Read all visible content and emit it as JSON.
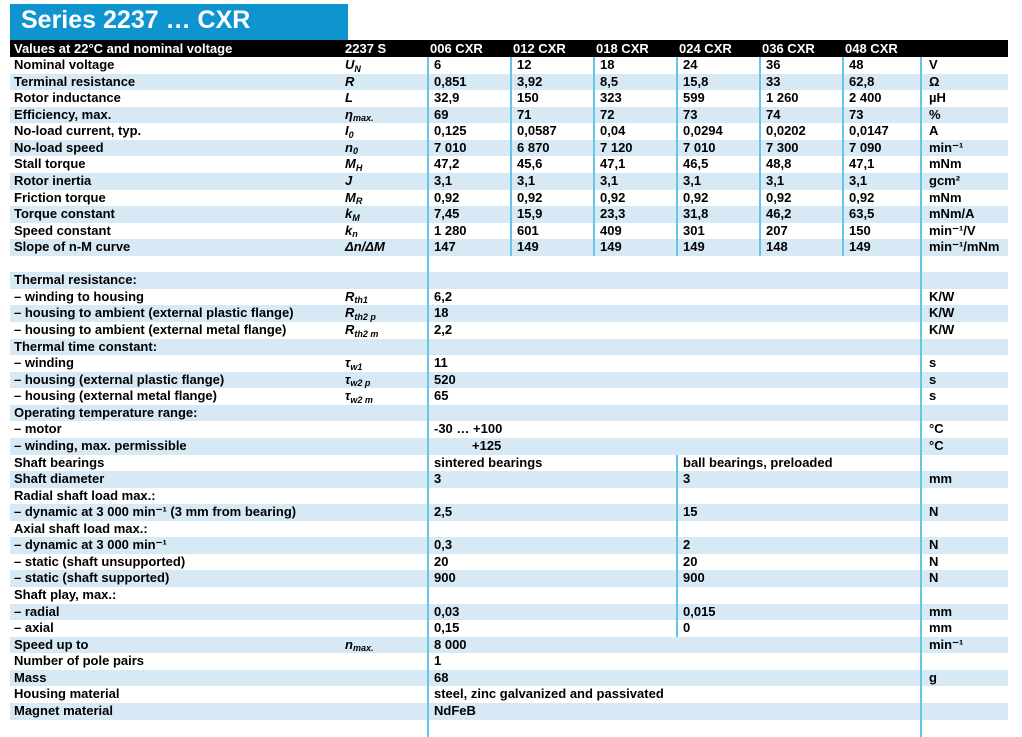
{
  "page": {
    "title": "Series 2237 … CXR",
    "header": {
      "caption": "Values at 22°C and nominal voltage",
      "series_col": "2237 S",
      "columns": [
        "006 CXR",
        "012 CXR",
        "018 CXR",
        "024 CXR",
        "036 CXR",
        "048 CXR"
      ]
    },
    "colors": {
      "title_bar": "#0e95d0",
      "header_bar": "#000000",
      "header_text": "#ffffff",
      "row_shade": "#d6e9f5",
      "divider": "#66c6e8",
      "text": "#000000"
    },
    "rows": [
      {
        "label": "Nominal voltage",
        "sym": "U",
        "sub": "N",
        "type": "six",
        "values": [
          "6",
          "12",
          "18",
          "24",
          "36",
          "48"
        ],
        "unit": "V",
        "shade": false
      },
      {
        "label": "Terminal resistance",
        "sym": "R",
        "sub": "",
        "type": "six",
        "values": [
          "0,851",
          "3,92",
          "8,5",
          "15,8",
          "33",
          "62,8"
        ],
        "unit": "Ω",
        "shade": true
      },
      {
        "label": "Rotor inductance",
        "sym": "L",
        "sub": "",
        "type": "six",
        "values": [
          "32,9",
          "150",
          "323",
          "599",
          "1 260",
          "2 400"
        ],
        "unit": "µH",
        "shade": false
      },
      {
        "label": "Efficiency, max.",
        "sym": "η",
        "sub": "max.",
        "type": "six",
        "values": [
          "69",
          "71",
          "72",
          "73",
          "74",
          "73"
        ],
        "unit": "%",
        "shade": true
      },
      {
        "label": "No-load current, typ.",
        "sym": "I",
        "sub": "0",
        "type": "six",
        "values": [
          "0,125",
          "0,0587",
          "0,04",
          "0,0294",
          "0,0202",
          "0,0147"
        ],
        "unit": "A",
        "shade": false
      },
      {
        "label": "No-load speed",
        "sym": "n",
        "sub": "0",
        "type": "six",
        "values": [
          "7 010",
          "6 870",
          "7 120",
          "7 010",
          "7 300",
          "7 090"
        ],
        "unit": "min⁻¹",
        "shade": true
      },
      {
        "label": "Stall torque",
        "sym": "M",
        "sub": "H",
        "type": "six",
        "values": [
          "47,2",
          "45,6",
          "47,1",
          "46,5",
          "48,8",
          "47,1"
        ],
        "unit": "mNm",
        "shade": false
      },
      {
        "label": "Rotor inertia",
        "sym": "J",
        "sub": "",
        "type": "six",
        "values": [
          "3,1",
          "3,1",
          "3,1",
          "3,1",
          "3,1",
          "3,1"
        ],
        "unit": "gcm²",
        "shade": true
      },
      {
        "label": "Friction torque",
        "sym": "M",
        "sub": "R",
        "type": "six",
        "values": [
          "0,92",
          "0,92",
          "0,92",
          "0,92",
          "0,92",
          "0,92"
        ],
        "unit": "mNm",
        "shade": false
      },
      {
        "label": "Torque constant",
        "sym": "k",
        "sub": "M",
        "type": "six",
        "values": [
          "7,45",
          "15,9",
          "23,3",
          "31,8",
          "46,2",
          "63,5"
        ],
        "unit": "mNm/A",
        "shade": true
      },
      {
        "label": "Speed constant",
        "sym": "k",
        "sub": "n",
        "type": "six",
        "values": [
          "1 280",
          "601",
          "409",
          "301",
          "207",
          "150"
        ],
        "unit": "min⁻¹/V",
        "shade": false
      },
      {
        "label": "Slope of n-M curve",
        "sym": "Δn/ΔM",
        "sub": "",
        "type": "six",
        "values": [
          "147",
          "149",
          "149",
          "149",
          "148",
          "149"
        ],
        "unit": "min⁻¹/mNm",
        "shade": true
      },
      {
        "label": "",
        "sym": "",
        "sub": "",
        "type": "one",
        "values": [
          ""
        ],
        "unit": "",
        "shade": false
      },
      {
        "label": "Thermal resistance:",
        "sym": "",
        "sub": "",
        "type": "one",
        "values": [
          ""
        ],
        "unit": "",
        "shade": true
      },
      {
        "label": "– winding to housing",
        "sym": "R",
        "sub": "th1",
        "type": "one",
        "values": [
          "6,2"
        ],
        "unit": "K/W",
        "shade": false
      },
      {
        "label": "– housing to ambient (external plastic flange)",
        "sym": "R",
        "sub": "th2 p",
        "type": "one",
        "values": [
          "18"
        ],
        "unit": "K/W",
        "shade": true
      },
      {
        "label": "– housing to ambient (external metal flange)",
        "sym": "R",
        "sub": "th2 m",
        "type": "one",
        "values": [
          "2,2"
        ],
        "unit": "K/W",
        "shade": false
      },
      {
        "label": "Thermal time constant:",
        "sym": "",
        "sub": "",
        "type": "one",
        "values": [
          ""
        ],
        "unit": "",
        "shade": true
      },
      {
        "label": "– winding",
        "sym": "τ",
        "sub": "w1",
        "type": "one",
        "values": [
          "11"
        ],
        "unit": "s",
        "shade": false
      },
      {
        "label": "– housing (external plastic flange)",
        "sym": "τ",
        "sub": "w2 p",
        "type": "one",
        "values": [
          "520"
        ],
        "unit": "s",
        "shade": true
      },
      {
        "label": "– housing (external metal flange)",
        "sym": "τ",
        "sub": "w2 m",
        "type": "one",
        "values": [
          "65"
        ],
        "unit": "s",
        "shade": false
      },
      {
        "label": "Operating temperature range:",
        "sym": "",
        "sub": "",
        "type": "one",
        "values": [
          ""
        ],
        "unit": "",
        "shade": true
      },
      {
        "label": "– motor",
        "sym": "",
        "sub": "",
        "type": "one",
        "values": [
          "-30  … +100"
        ],
        "unit": "°C",
        "shade": false
      },
      {
        "label": "– winding, max. permissible",
        "sym": "",
        "sub": "",
        "type": "one",
        "values": [
          "+125"
        ],
        "unit": "°C",
        "shade": true,
        "indent": true
      },
      {
        "label": "Shaft bearings",
        "sym": "",
        "sub": "",
        "type": "two",
        "values": [
          "sintered bearings",
          "ball bearings, preloaded"
        ],
        "unit": "",
        "shade": false
      },
      {
        "label": "Shaft diameter",
        "sym": "",
        "sub": "",
        "type": "two",
        "values": [
          "3",
          "3"
        ],
        "unit": "mm",
        "shade": true
      },
      {
        "label": "Radial shaft load max.:",
        "sym": "",
        "sub": "",
        "type": "two",
        "values": [
          "",
          ""
        ],
        "unit": "",
        "shade": false
      },
      {
        "label": "– dynamic at 3 000 min⁻¹ (3 mm from bearing)",
        "sym": "",
        "sub": "",
        "type": "two",
        "values": [
          "2,5",
          "15"
        ],
        "unit": "N",
        "shade": true
      },
      {
        "label": "Axial shaft load max.:",
        "sym": "",
        "sub": "",
        "type": "two",
        "values": [
          "",
          ""
        ],
        "unit": "",
        "shade": false
      },
      {
        "label": "– dynamic at 3 000 min⁻¹",
        "sym": "",
        "sub": "",
        "type": "two",
        "values": [
          "0,3",
          "2"
        ],
        "unit": "N",
        "shade": true
      },
      {
        "label": "– static (shaft unsupported)",
        "sym": "",
        "sub": "",
        "type": "two",
        "values": [
          "20",
          "20"
        ],
        "unit": "N",
        "shade": false
      },
      {
        "label": "– static (shaft supported)",
        "sym": "",
        "sub": "",
        "type": "two",
        "values": [
          "900",
          "900"
        ],
        "unit": "N",
        "shade": true
      },
      {
        "label": "Shaft play, max.:",
        "sym": "",
        "sub": "",
        "type": "two",
        "values": [
          "",
          ""
        ],
        "unit": "",
        "shade": false
      },
      {
        "label": "– radial",
        "sym": "",
        "sub": "",
        "type": "two",
        "values": [
          "0,03",
          "0,015"
        ],
        "unit": "mm",
        "shade": true
      },
      {
        "label": "– axial",
        "sym": "",
        "sub": "",
        "type": "two",
        "values": [
          "0,15",
          "0"
        ],
        "unit": "mm",
        "shade": false
      },
      {
        "label": "Speed up to",
        "sym": "n",
        "sub": "max.",
        "type": "one",
        "values": [
          "8 000"
        ],
        "unit": "min⁻¹",
        "shade": true
      },
      {
        "label": "Number of pole pairs",
        "sym": "",
        "sub": "",
        "type": "one",
        "values": [
          "1"
        ],
        "unit": "",
        "shade": false
      },
      {
        "label": "Mass",
        "sym": "",
        "sub": "",
        "type": "one",
        "values": [
          "68"
        ],
        "unit": "g",
        "shade": true
      },
      {
        "label": "Housing material",
        "sym": "",
        "sub": "",
        "type": "one",
        "values": [
          "steel, zinc galvanized and passivated"
        ],
        "unit": "",
        "shade": false
      },
      {
        "label": "Magnet material",
        "sym": "",
        "sub": "",
        "type": "one",
        "values": [
          "NdFeB"
        ],
        "unit": "",
        "shade": true
      }
    ]
  }
}
